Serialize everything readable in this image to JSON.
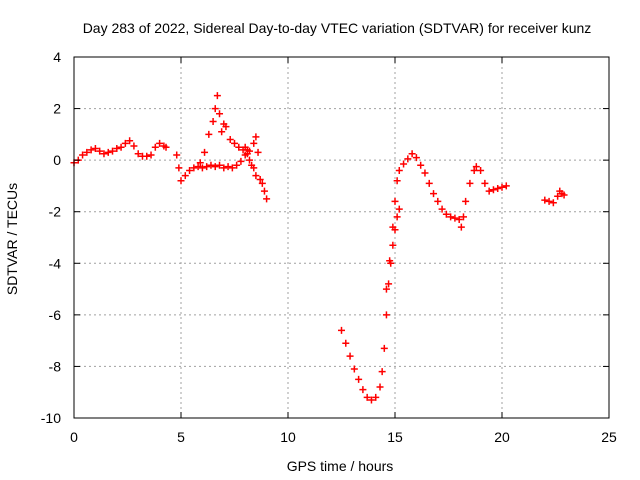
{
  "chart_data": {
    "type": "scatter",
    "title": "Day 283 of 2022, Sidereal Day-to-day VTEC variation (SDTVAR) for receiver kunz",
    "xlabel": "GPS time / hours",
    "ylabel": "SDTVAR / TECUs",
    "xlim": [
      0,
      25
    ],
    "ylim": [
      -10,
      4
    ],
    "x_ticks": [
      0,
      5,
      10,
      15,
      20,
      25
    ],
    "y_ticks": [
      -10,
      -8,
      -6,
      -4,
      -2,
      0,
      2,
      4
    ],
    "x_tick_labels": [
      "0",
      "5",
      "10",
      "15",
      "20",
      "25"
    ],
    "y_tick_labels": [
      "-10",
      "-8",
      "-6",
      "-4",
      "-2",
      "0",
      "2",
      "4"
    ],
    "grid": true,
    "marker": "plus",
    "color": "#ff0000",
    "series": [
      {
        "name": "SDTVAR",
        "points": [
          [
            0.0,
            -0.1
          ],
          [
            0.2,
            0.0
          ],
          [
            0.4,
            0.2
          ],
          [
            0.6,
            0.3
          ],
          [
            0.8,
            0.4
          ],
          [
            1.0,
            0.45
          ],
          [
            1.2,
            0.35
          ],
          [
            1.4,
            0.25
          ],
          [
            1.6,
            0.3
          ],
          [
            1.8,
            0.35
          ],
          [
            2.0,
            0.45
          ],
          [
            2.2,
            0.5
          ],
          [
            2.4,
            0.65
          ],
          [
            2.6,
            0.75
          ],
          [
            2.8,
            0.55
          ],
          [
            3.0,
            0.25
          ],
          [
            3.2,
            0.15
          ],
          [
            3.4,
            0.15
          ],
          [
            3.6,
            0.2
          ],
          [
            3.8,
            0.5
          ],
          [
            4.0,
            0.65
          ],
          [
            4.2,
            0.55
          ],
          [
            4.3,
            0.5
          ],
          [
            4.8,
            0.2
          ],
          [
            4.9,
            -0.3
          ],
          [
            5.0,
            -0.8
          ],
          [
            5.2,
            -0.6
          ],
          [
            5.4,
            -0.4
          ],
          [
            5.6,
            -0.3
          ],
          [
            5.8,
            -0.25
          ],
          [
            6.0,
            -0.3
          ],
          [
            6.2,
            -0.25
          ],
          [
            6.4,
            -0.2
          ],
          [
            6.6,
            -0.25
          ],
          [
            6.8,
            -0.2
          ],
          [
            7.0,
            -0.3
          ],
          [
            7.2,
            -0.25
          ],
          [
            7.4,
            -0.3
          ],
          [
            7.6,
            -0.2
          ],
          [
            7.8,
            -0.05
          ],
          [
            8.0,
            0.2
          ],
          [
            8.1,
            0.4
          ],
          [
            5.9,
            -0.1
          ],
          [
            6.1,
            0.3
          ],
          [
            6.3,
            1.0
          ],
          [
            6.5,
            1.5
          ],
          [
            6.6,
            2.0
          ],
          [
            6.7,
            2.5
          ],
          [
            6.8,
            1.8
          ],
          [
            6.9,
            1.1
          ],
          [
            7.0,
            1.4
          ],
          [
            7.1,
            1.3
          ],
          [
            7.3,
            0.8
          ],
          [
            7.5,
            0.65
          ],
          [
            7.7,
            0.5
          ],
          [
            7.9,
            0.4
          ],
          [
            8.1,
            0.25
          ],
          [
            8.2,
            0.0
          ],
          [
            8.3,
            -0.2
          ],
          [
            8.0,
            0.5
          ],
          [
            8.2,
            0.35
          ],
          [
            8.4,
            0.65
          ],
          [
            8.5,
            0.9
          ],
          [
            8.6,
            0.3
          ],
          [
            8.4,
            -0.3
          ],
          [
            8.5,
            -0.6
          ],
          [
            8.7,
            -0.75
          ],
          [
            8.8,
            -0.9
          ],
          [
            8.9,
            -1.2
          ],
          [
            9.0,
            -1.5
          ],
          [
            12.5,
            -6.6
          ],
          [
            12.7,
            -7.1
          ],
          [
            12.9,
            -7.6
          ],
          [
            13.1,
            -8.1
          ],
          [
            13.3,
            -8.5
          ],
          [
            13.5,
            -8.9
          ],
          [
            13.7,
            -9.2
          ],
          [
            13.9,
            -9.3
          ],
          [
            14.1,
            -9.2
          ],
          [
            14.3,
            -8.8
          ],
          [
            14.4,
            -8.2
          ],
          [
            14.5,
            -7.3
          ],
          [
            14.6,
            -6.0
          ],
          [
            14.7,
            -4.8
          ],
          [
            14.8,
            -4.0
          ],
          [
            14.9,
            -3.3
          ],
          [
            15.0,
            -2.7
          ],
          [
            15.1,
            -2.2
          ],
          [
            15.2,
            -1.9
          ],
          [
            14.6,
            -5.0
          ],
          [
            14.75,
            -3.9
          ],
          [
            14.9,
            -2.6
          ],
          [
            15.0,
            -1.6
          ],
          [
            15.1,
            -0.8
          ],
          [
            15.2,
            -0.4
          ],
          [
            15.4,
            -0.15
          ],
          [
            15.6,
            0.05
          ],
          [
            15.8,
            0.25
          ],
          [
            16.0,
            0.1
          ],
          [
            16.2,
            -0.2
          ],
          [
            16.4,
            -0.5
          ],
          [
            16.6,
            -0.9
          ],
          [
            16.8,
            -1.3
          ],
          [
            17.0,
            -1.6
          ],
          [
            17.2,
            -1.9
          ],
          [
            17.4,
            -2.1
          ],
          [
            17.6,
            -2.2
          ],
          [
            17.8,
            -2.25
          ],
          [
            18.0,
            -2.3
          ],
          [
            18.1,
            -2.6
          ],
          [
            18.2,
            -2.2
          ],
          [
            18.3,
            -1.6
          ],
          [
            18.5,
            -0.9
          ],
          [
            18.7,
            -0.4
          ],
          [
            18.8,
            -0.25
          ],
          [
            19.0,
            -0.4
          ],
          [
            19.2,
            -0.9
          ],
          [
            19.4,
            -1.2
          ],
          [
            19.6,
            -1.15
          ],
          [
            19.8,
            -1.1
          ],
          [
            20.0,
            -1.05
          ],
          [
            20.2,
            -1.0
          ],
          [
            22.0,
            -1.55
          ],
          [
            22.2,
            -1.6
          ],
          [
            22.4,
            -1.65
          ],
          [
            22.6,
            -1.4
          ],
          [
            22.7,
            -1.2
          ],
          [
            22.8,
            -1.3
          ],
          [
            22.9,
            -1.35
          ]
        ]
      }
    ]
  }
}
